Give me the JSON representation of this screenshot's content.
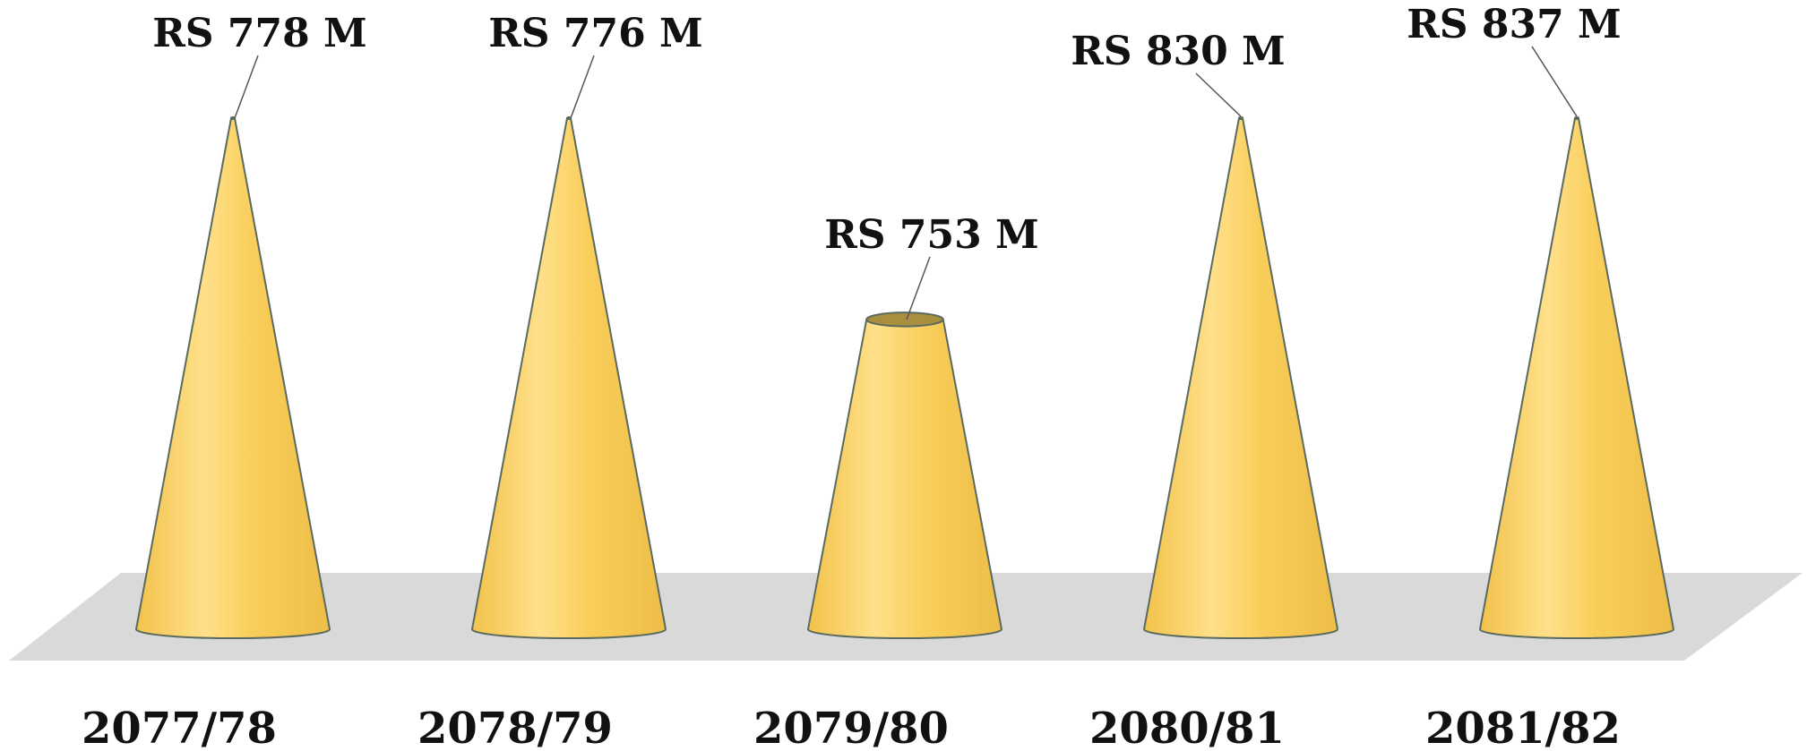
{
  "chart_data": {
    "type": "bar",
    "style": "3d-cone",
    "categories": [
      "2077/78",
      "2078/79",
      "2079/80",
      "2080/81",
      "2081/82"
    ],
    "values": [
      778,
      776,
      753,
      830,
      837
    ],
    "data_labels": [
      "RS 778 M",
      "RS 776 M",
      "RS 753 M",
      "RS 830 M",
      "RS 837 M"
    ],
    "title": "",
    "xlabel": "",
    "ylabel": "",
    "grid": false,
    "legend": "none",
    "colors": {
      "cone": "#F9CE5A",
      "cone_highlight": "#FFE7A0",
      "cone_edge": "#5A6A5E",
      "cone_top": "#A88E3E",
      "floor": "#D9D9D9",
      "leader": "#555555"
    }
  }
}
